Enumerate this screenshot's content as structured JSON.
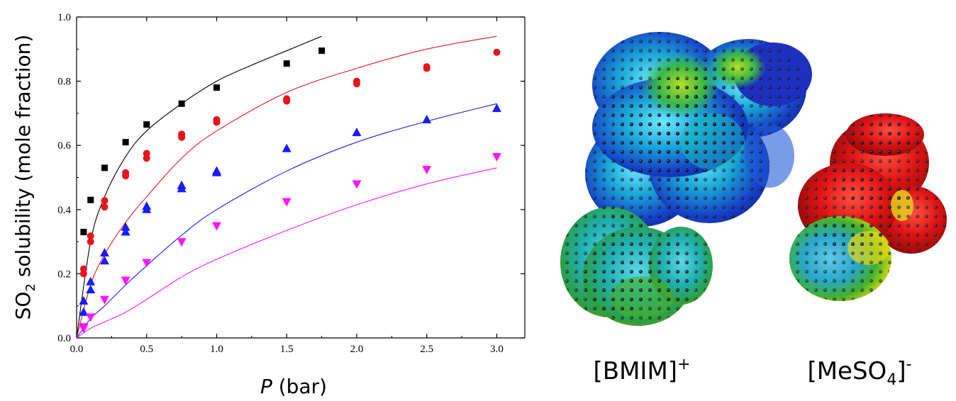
{
  "chart_data": {
    "type": "scatter",
    "title": "",
    "xlabel": {
      "italic": "P",
      "rest": " (bar)"
    },
    "ylabel": {
      "pre": "SO",
      "sub": "2",
      "post": " solubility (mole fraction)"
    },
    "xlim": [
      0.0,
      3.2
    ],
    "ylim": [
      0.0,
      1.0
    ],
    "xticks": [
      "0.0",
      "0.5",
      "1.0",
      "1.5",
      "2.0",
      "2.5",
      "3.0"
    ],
    "yticks": [
      "0.0",
      "0.2",
      "0.4",
      "0.6",
      "0.8",
      "1.0"
    ],
    "grid": false,
    "series": [
      {
        "marker": "square",
        "color": "#000000",
        "points": [
          [
            0.05,
            0.33
          ],
          [
            0.1,
            0.43
          ],
          [
            0.2,
            0.53
          ],
          [
            0.35,
            0.61
          ],
          [
            0.5,
            0.665
          ],
          [
            0.75,
            0.73
          ],
          [
            1.0,
            0.78
          ],
          [
            1.5,
            0.855
          ],
          [
            1.75,
            0.895
          ]
        ],
        "fit": [
          [
            0.0,
            0.0
          ],
          [
            0.1,
            0.3
          ],
          [
            0.2,
            0.44
          ],
          [
            0.35,
            0.565
          ],
          [
            0.5,
            0.645
          ],
          [
            0.75,
            0.73
          ],
          [
            1.0,
            0.8
          ],
          [
            1.25,
            0.85
          ],
          [
            1.5,
            0.895
          ],
          [
            1.75,
            0.94
          ]
        ]
      },
      {
        "marker": "circle",
        "color": "#e8141c",
        "points": [
          [
            0.05,
            0.215
          ],
          [
            0.05,
            0.2
          ],
          [
            0.1,
            0.318
          ],
          [
            0.1,
            0.3
          ],
          [
            0.2,
            0.428
          ],
          [
            0.2,
            0.408
          ],
          [
            0.35,
            0.515
          ],
          [
            0.35,
            0.505
          ],
          [
            0.5,
            0.575
          ],
          [
            0.5,
            0.56
          ],
          [
            0.75,
            0.635
          ],
          [
            0.75,
            0.625
          ],
          [
            1.0,
            0.68
          ],
          [
            1.0,
            0.672
          ],
          [
            1.5,
            0.745
          ],
          [
            1.5,
            0.738
          ],
          [
            2.0,
            0.8
          ],
          [
            2.0,
            0.792
          ],
          [
            2.5,
            0.845
          ],
          [
            2.5,
            0.84
          ],
          [
            3.0,
            0.89
          ]
        ],
        "fit": [
          [
            0.0,
            0.0
          ],
          [
            0.1,
            0.165
          ],
          [
            0.2,
            0.26
          ],
          [
            0.35,
            0.36
          ],
          [
            0.5,
            0.44
          ],
          [
            0.75,
            0.56
          ],
          [
            1.0,
            0.645
          ],
          [
            1.5,
            0.765
          ],
          [
            2.0,
            0.84
          ],
          [
            2.5,
            0.9
          ],
          [
            3.0,
            0.94
          ]
        ]
      },
      {
        "marker": "triangle-up",
        "color": "#1a1aff",
        "points": [
          [
            0.05,
            0.08
          ],
          [
            0.05,
            0.115
          ],
          [
            0.1,
            0.15
          ],
          [
            0.1,
            0.175
          ],
          [
            0.2,
            0.24
          ],
          [
            0.2,
            0.265
          ],
          [
            0.35,
            0.33
          ],
          [
            0.35,
            0.345
          ],
          [
            0.5,
            0.4
          ],
          [
            0.5,
            0.41
          ],
          [
            0.75,
            0.465
          ],
          [
            0.75,
            0.475
          ],
          [
            1.0,
            0.515
          ],
          [
            1.0,
            0.52
          ],
          [
            1.5,
            0.59
          ],
          [
            2.0,
            0.64
          ],
          [
            2.5,
            0.68
          ],
          [
            3.0,
            0.715
          ]
        ],
        "fit": [
          [
            0.0,
            0.0
          ],
          [
            0.1,
            0.06
          ],
          [
            0.2,
            0.1
          ],
          [
            0.35,
            0.165
          ],
          [
            0.5,
            0.225
          ],
          [
            0.75,
            0.32
          ],
          [
            1.0,
            0.4
          ],
          [
            1.5,
            0.52
          ],
          [
            2.0,
            0.61
          ],
          [
            2.5,
            0.675
          ],
          [
            3.0,
            0.73
          ]
        ]
      },
      {
        "marker": "triangle-down",
        "color": "#ff14ff",
        "points": [
          [
            0.05,
            0.035
          ],
          [
            0.05,
            0.03
          ],
          [
            0.1,
            0.065
          ],
          [
            0.2,
            0.12
          ],
          [
            0.35,
            0.18
          ],
          [
            0.5,
            0.235
          ],
          [
            0.75,
            0.3
          ],
          [
            1.0,
            0.35
          ],
          [
            1.5,
            0.425
          ],
          [
            2.0,
            0.48
          ],
          [
            2.5,
            0.525
          ],
          [
            3.0,
            0.565
          ]
        ],
        "fit": [
          [
            0.0,
            0.0
          ],
          [
            0.1,
            0.03
          ],
          [
            0.2,
            0.05
          ],
          [
            0.35,
            0.08
          ],
          [
            0.5,
            0.12
          ],
          [
            0.75,
            0.19
          ],
          [
            1.0,
            0.245
          ],
          [
            1.5,
            0.335
          ],
          [
            2.0,
            0.415
          ],
          [
            2.5,
            0.48
          ],
          [
            3.0,
            0.53
          ]
        ]
      }
    ]
  },
  "ions": {
    "cation": {
      "text": "[BMIM]",
      "sup": "+"
    },
    "anion": {
      "text_pre": "[MeSO",
      "sub": "4",
      "text_post": "]",
      "sup": "-"
    }
  }
}
